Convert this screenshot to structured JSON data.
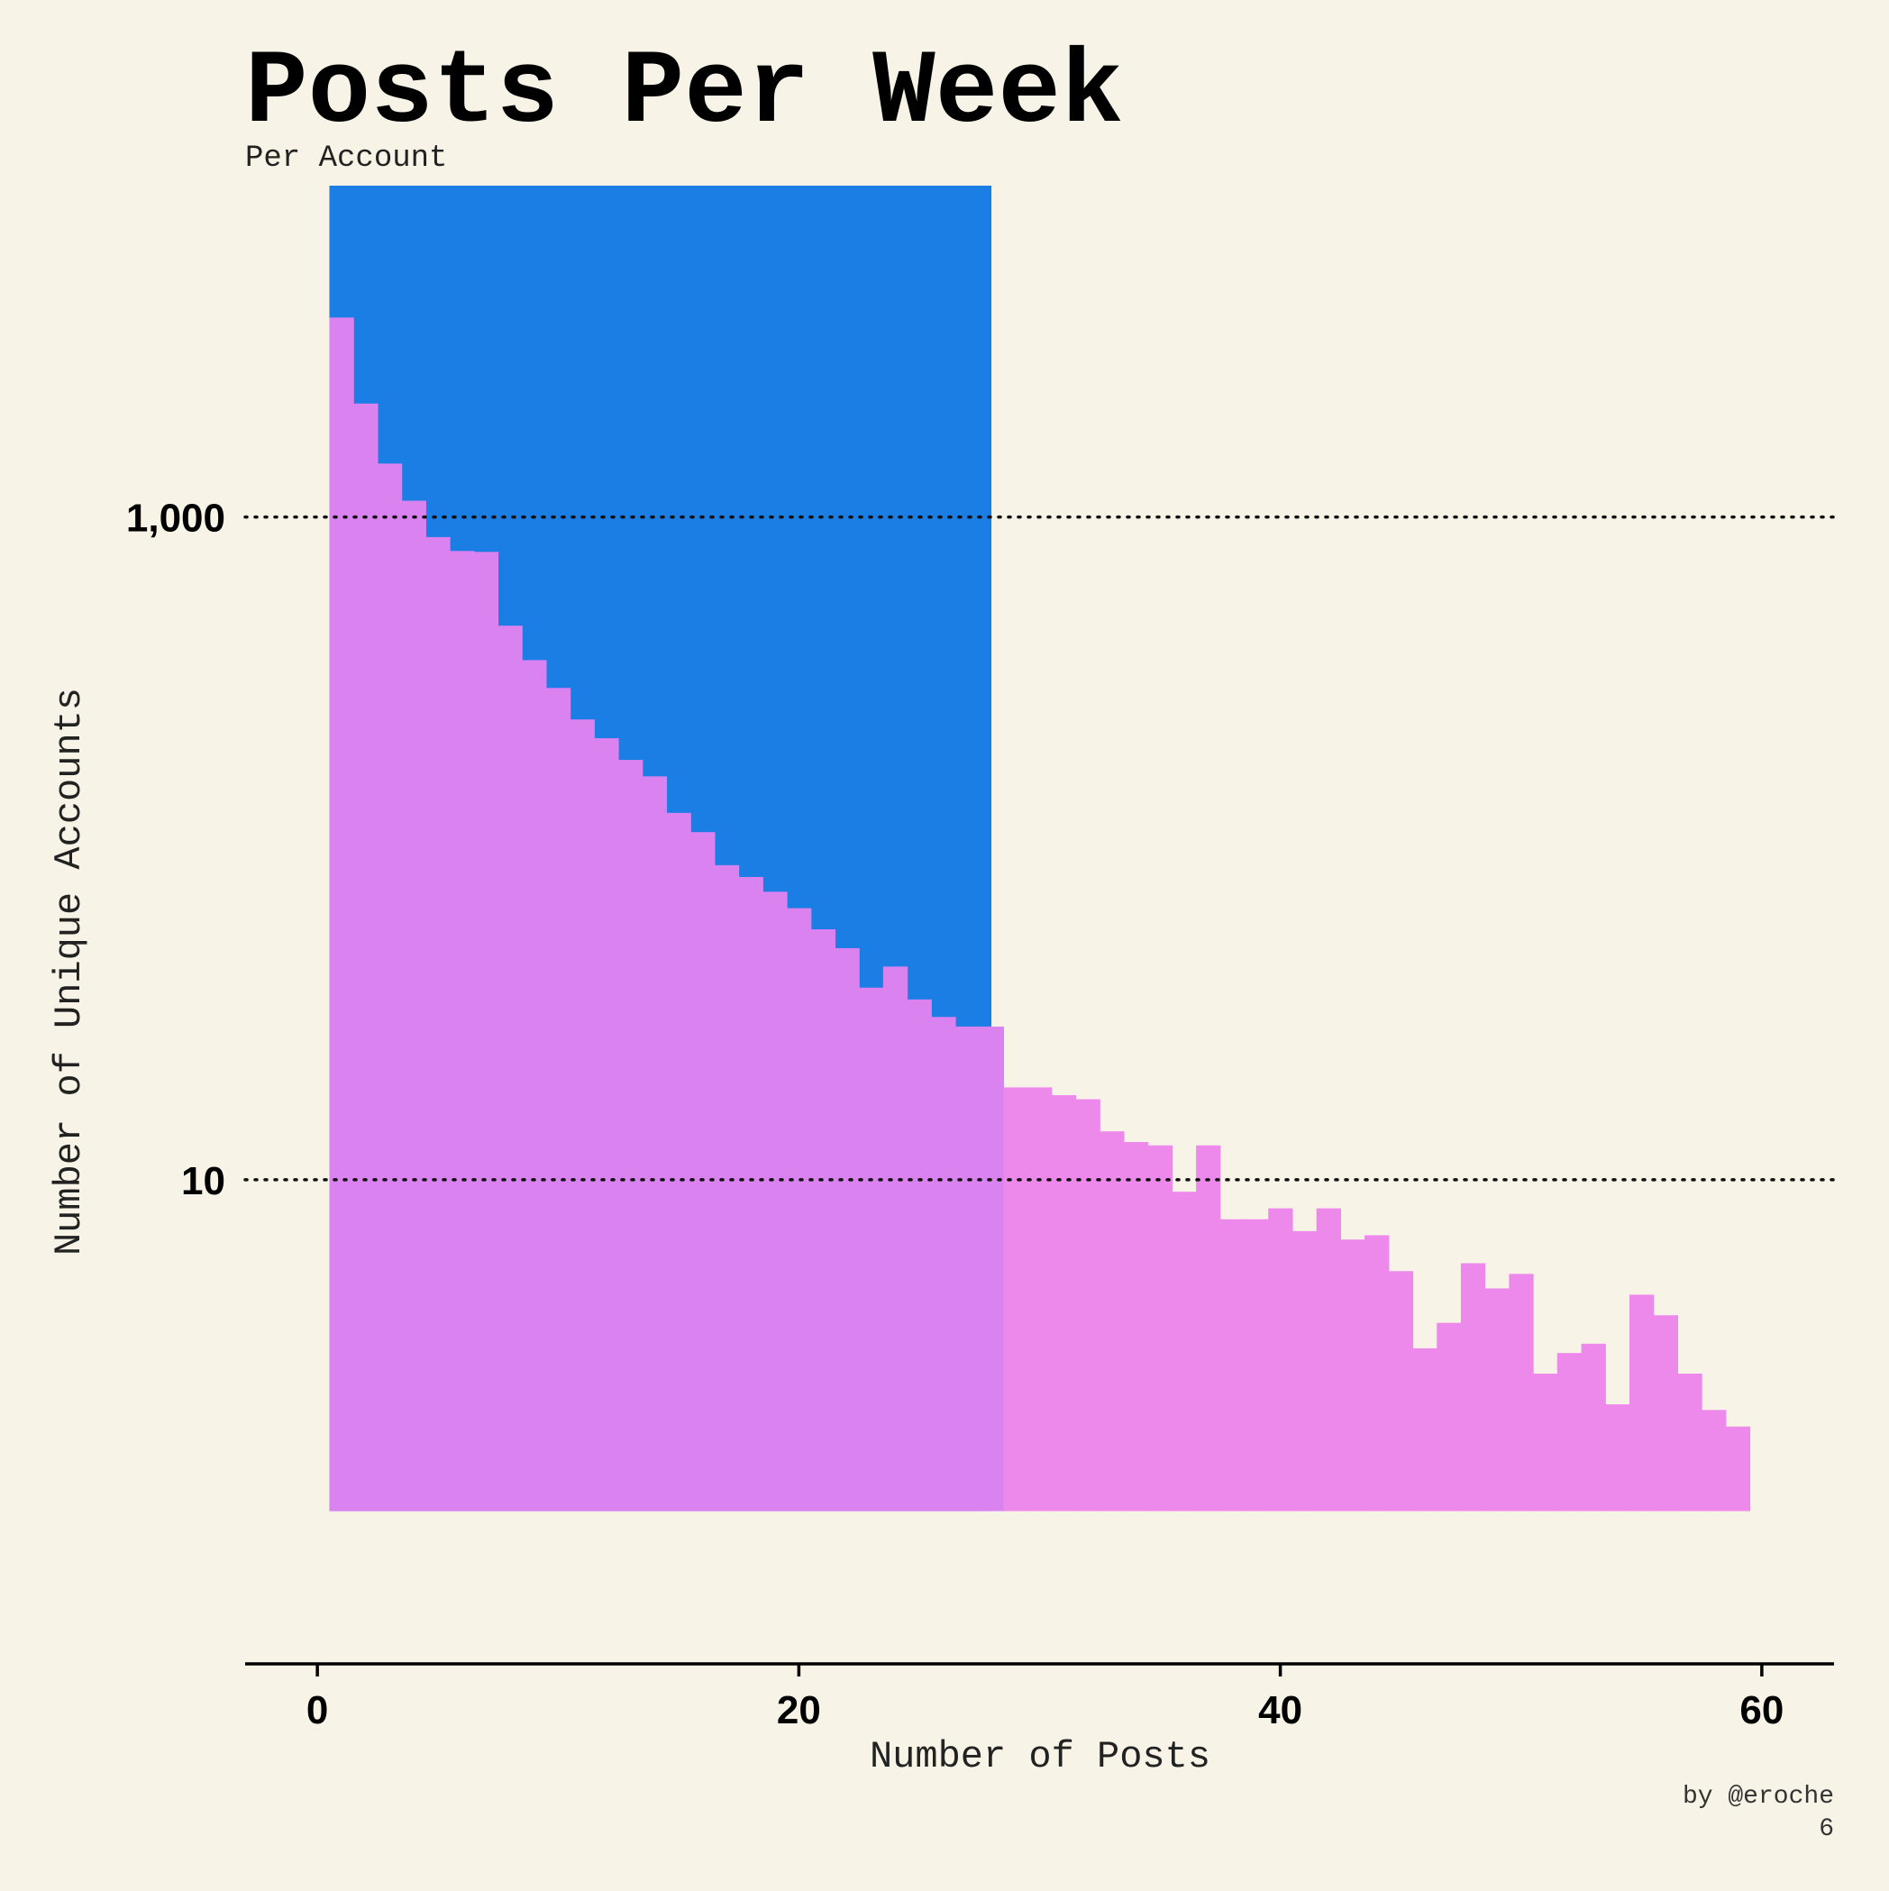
{
  "colors": {
    "background": "#f8f3e7",
    "highlight_band": "#1b7ee4",
    "bars_inside_band": "#d982f0",
    "bars_outside_band": "#ee89ec",
    "grid": "#111111",
    "axis": "#000000"
  },
  "credit": {
    "author": "by @eroche",
    "page": "6"
  },
  "chart_data": {
    "type": "bar",
    "title": "Posts Per Week",
    "subtitle": "Per Account",
    "xlabel": "Number of Posts",
    "ylabel": "Number of Unique Accounts",
    "y_scale": "log",
    "xlim": [
      -3,
      63
    ],
    "ylim": [
      0.55,
      10000
    ],
    "bar_baseline": 1,
    "x_ticks": [
      0,
      20,
      40,
      60
    ],
    "x_tick_labels": [
      "0",
      "20",
      "40",
      "60"
    ],
    "y_ticks": [
      10,
      1000
    ],
    "y_tick_labels": [
      "10",
      "1,000"
    ],
    "grid": "horizontal dotted",
    "highlight_band": {
      "x_start": 0.5,
      "x_end": 28
    },
    "x": [
      1,
      2,
      3,
      4,
      5,
      6,
      7,
      8,
      9,
      10,
      11,
      12,
      13,
      14,
      15,
      16,
      17,
      18,
      19,
      20,
      21,
      22,
      23,
      24,
      25,
      26,
      27,
      28,
      29,
      30,
      31,
      32,
      33,
      34,
      35,
      36,
      37,
      38,
      39,
      40,
      41,
      42,
      43,
      44,
      45,
      46,
      47,
      48,
      49,
      50,
      51,
      52,
      53,
      54,
      55,
      56,
      57,
      58,
      59
    ],
    "values": [
      4000,
      2200,
      1450,
      1120,
      870,
      790,
      785,
      470,
      370,
      305,
      245,
      215,
      185,
      165,
      128,
      112,
      89,
      82,
      74,
      66,
      57,
      50,
      38,
      44,
      35,
      31,
      29,
      29,
      19,
      19,
      18,
      17.5,
      14,
      13,
      12.7,
      9.2,
      12.7,
      7.6,
      7.6,
      8.2,
      7,
      8.2,
      6.6,
      6.8,
      5.3,
      3.1,
      3.7,
      5.6,
      4.7,
      5.2,
      2.6,
      3,
      3.2,
      2.1,
      4.5,
      3.9,
      2.6,
      2.02,
      1.8
    ]
  }
}
